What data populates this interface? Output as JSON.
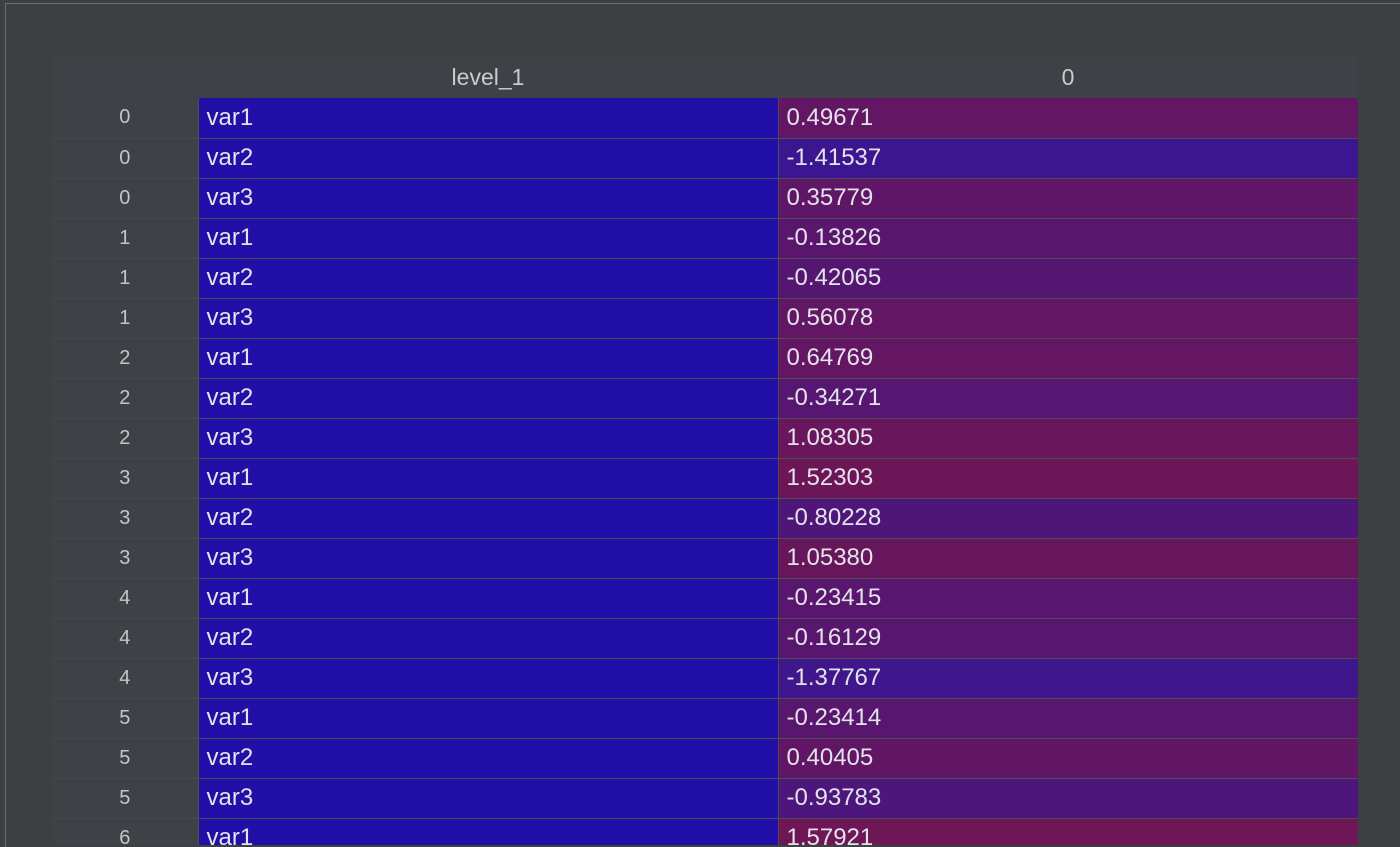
{
  "table": {
    "headers": {
      "index": "",
      "level_1": "level_1",
      "value": "0"
    },
    "colors": {
      "level_1_cell": "#220fa8",
      "value_high": "#6e1656",
      "value_low": "#3b1690"
    },
    "rows": [
      {
        "index": "0",
        "level_1": "var1",
        "value": "0.49671",
        "num": 0.49671
      },
      {
        "index": "0",
        "level_1": "var2",
        "value": "-1.41537",
        "num": -1.41537
      },
      {
        "index": "0",
        "level_1": "var3",
        "value": "0.35779",
        "num": 0.35779
      },
      {
        "index": "1",
        "level_1": "var1",
        "value": "-0.13826",
        "num": -0.13826
      },
      {
        "index": "1",
        "level_1": "var2",
        "value": "-0.42065",
        "num": -0.42065
      },
      {
        "index": "1",
        "level_1": "var3",
        "value": "0.56078",
        "num": 0.56078
      },
      {
        "index": "2",
        "level_1": "var1",
        "value": "0.64769",
        "num": 0.64769
      },
      {
        "index": "2",
        "level_1": "var2",
        "value": "-0.34271",
        "num": -0.34271
      },
      {
        "index": "2",
        "level_1": "var3",
        "value": "1.08305",
        "num": 1.08305
      },
      {
        "index": "3",
        "level_1": "var1",
        "value": "1.52303",
        "num": 1.52303
      },
      {
        "index": "3",
        "level_1": "var2",
        "value": "-0.80228",
        "num": -0.80228
      },
      {
        "index": "3",
        "level_1": "var3",
        "value": "1.05380",
        "num": 1.0538
      },
      {
        "index": "4",
        "level_1": "var1",
        "value": "-0.23415",
        "num": -0.23415
      },
      {
        "index": "4",
        "level_1": "var2",
        "value": "-0.16129",
        "num": -0.16129
      },
      {
        "index": "4",
        "level_1": "var3",
        "value": "-1.37767",
        "num": -1.37767
      },
      {
        "index": "5",
        "level_1": "var1",
        "value": "-0.23414",
        "num": -0.23414
      },
      {
        "index": "5",
        "level_1": "var2",
        "value": "0.40405",
        "num": 0.40405
      },
      {
        "index": "5",
        "level_1": "var3",
        "value": "-0.93783",
        "num": -0.93783
      },
      {
        "index": "6",
        "level_1": "var1",
        "value": "1.57921",
        "num": 1.57921
      }
    ]
  }
}
